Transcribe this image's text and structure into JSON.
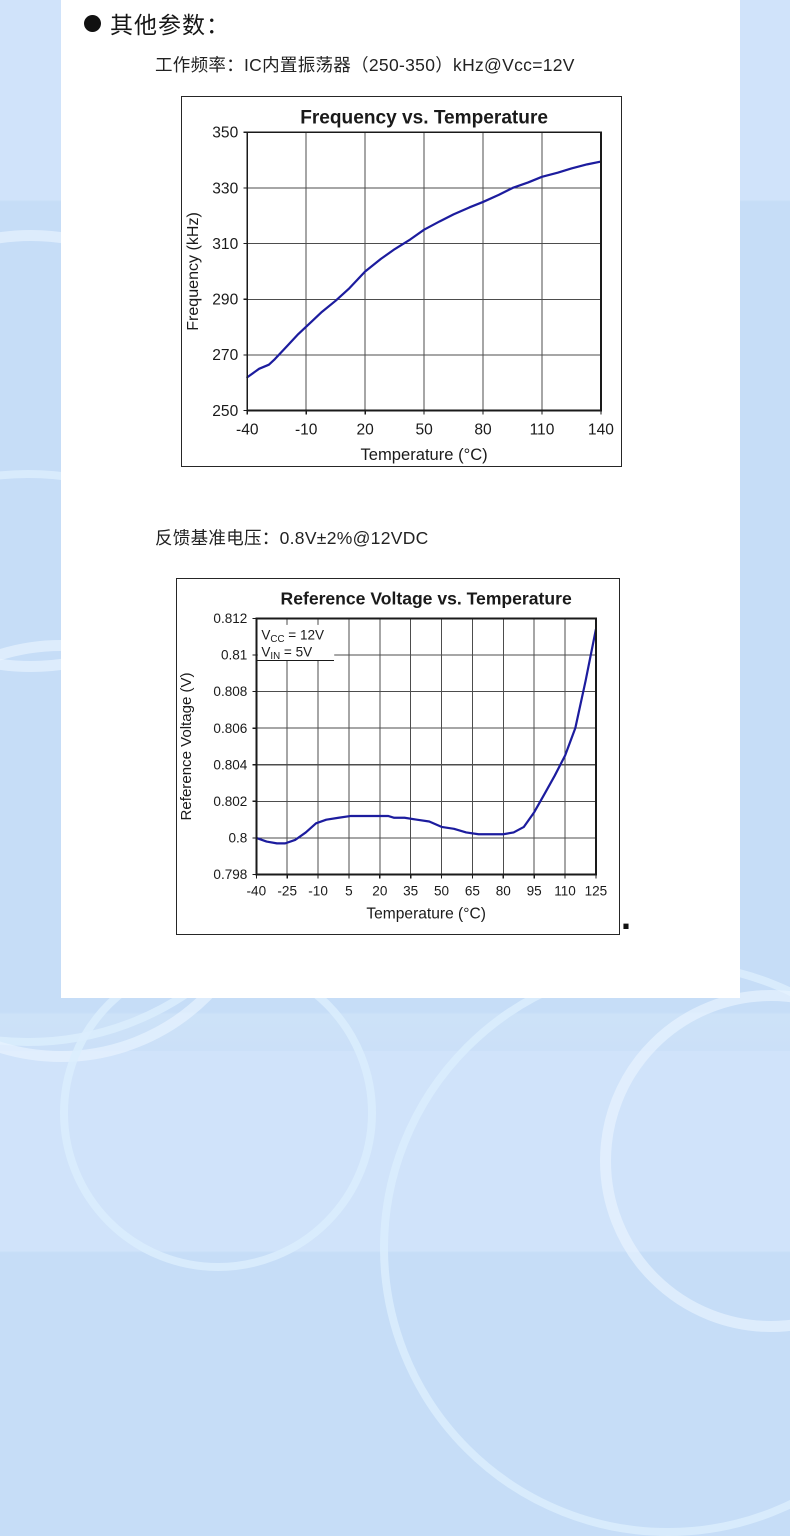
{
  "page": {
    "header": "其他参数：",
    "trailing_period": "."
  },
  "sections": [
    {
      "label": "工作频率：IC内置振荡器（250-350）kHz@Vcc=12V"
    },
    {
      "label": "反馈基准电压：0.8V±2%@12VDC"
    }
  ],
  "colors": {
    "page_background": "#c6ddf7",
    "panel": "#ffffff",
    "curve": "#1c1c9e",
    "grid": "#4d4d4d",
    "axis": "#1a1a1a",
    "text": "#1a1a1a"
  },
  "chart_data": [
    {
      "type": "line",
      "title": "Frequency vs. Temperature",
      "xlabel": "Temperature (°C)",
      "ylabel": "Frequency (kHz)",
      "xlim": [
        -40,
        140
      ],
      "ylim": [
        250,
        350
      ],
      "xticks": [
        -40,
        -10,
        20,
        50,
        80,
        110,
        140
      ],
      "xtick_labels": [
        "-40",
        "-10",
        "20",
        "50",
        "80",
        "110",
        "140"
      ],
      "yticks": [
        250,
        270,
        290,
        310,
        330,
        350
      ],
      "ytick_labels": [
        "250",
        "270",
        "290",
        "310",
        "330",
        "350"
      ],
      "grid": true,
      "legend": null,
      "line_color": "#1c1c9e",
      "x": [
        -40,
        -34,
        -29,
        -26,
        -20,
        -14,
        -8,
        -2,
        5,
        12,
        20,
        28,
        35,
        43,
        50,
        58,
        65,
        73,
        80,
        88,
        95,
        103,
        110,
        118,
        125,
        133,
        140
      ],
      "y": [
        262,
        265,
        266.5,
        268.5,
        273,
        277.5,
        281.5,
        285.5,
        289.5,
        294,
        300,
        304.5,
        308,
        311.5,
        315,
        318,
        320.5,
        323,
        325,
        327.5,
        330,
        332,
        334,
        335.5,
        337,
        338.5,
        339.5
      ]
    },
    {
      "type": "line",
      "title": "Reference Voltage vs. Temperature",
      "xlabel": "Temperature (°C)",
      "ylabel": "Reference Voltage (V)",
      "xlim": [
        -40,
        125
      ],
      "ylim": [
        0.798,
        0.812
      ],
      "xticks": [
        -40,
        -25,
        -10,
        5,
        20,
        35,
        50,
        65,
        80,
        95,
        110,
        125
      ],
      "xtick_labels": [
        "-40",
        "-25",
        "-10",
        "5",
        "20",
        "35",
        "50",
        "65",
        "80",
        "95",
        "110",
        "125"
      ],
      "yticks": [
        0.798,
        0.8,
        0.802,
        0.804,
        0.806,
        0.808,
        0.81,
        0.812
      ],
      "ytick_labels": [
        "0.798",
        "0.8",
        "0.802",
        "0.804",
        "0.806",
        "0.808",
        "0.81",
        "0.812"
      ],
      "grid": true,
      "legend": null,
      "annotation": {
        "lines": [
          {
            "base": "V",
            "sub": "CC",
            "rest": " = 12V"
          },
          {
            "base": "V",
            "sub": "IN",
            "rest": " = 5V"
          }
        ]
      },
      "line_color": "#1c1c9e",
      "x": [
        -40,
        -35,
        -30,
        -26,
        -21,
        -16,
        -11,
        -6,
        0,
        6,
        12,
        18,
        24,
        27,
        32,
        38,
        44,
        50,
        56,
        62,
        68,
        74,
        80,
        85,
        90,
        95,
        100,
        105,
        110,
        115,
        120,
        125
      ],
      "y": [
        0.8,
        0.7998,
        0.7997,
        0.7997,
        0.7999,
        0.8003,
        0.8008,
        0.801,
        0.8011,
        0.8012,
        0.8012,
        0.8012,
        0.8012,
        0.8011,
        0.8011,
        0.801,
        0.8009,
        0.8006,
        0.8005,
        0.8003,
        0.8002,
        0.8002,
        0.8002,
        0.8003,
        0.8006,
        0.8014,
        0.8024,
        0.8034,
        0.8045,
        0.806,
        0.8086,
        0.8114
      ]
    }
  ]
}
